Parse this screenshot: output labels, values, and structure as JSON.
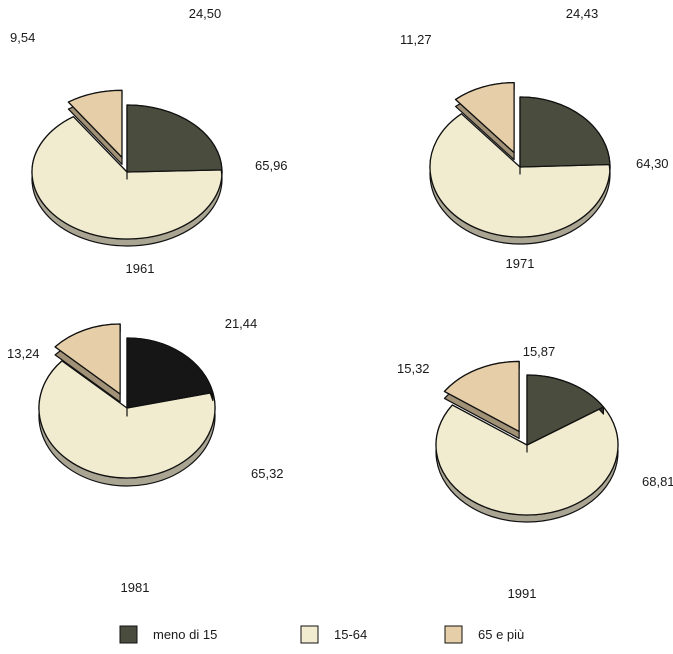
{
  "chart_data": {
    "type": "pie",
    "legend": {
      "placement": "bottom",
      "entries": [
        {
          "label": "meno di 15",
          "color": "#4a4d3e"
        },
        {
          "label": "15-64",
          "color": "#f1ecd0"
        },
        {
          "label": "65 e più",
          "color": "#e6cfa8"
        }
      ]
    },
    "charts": [
      {
        "year": "1961",
        "slices": [
          {
            "category": "meno di 15",
            "value": 24.5,
            "label": "24,50"
          },
          {
            "category": "15-64",
            "value": 65.96,
            "label": "65,96"
          },
          {
            "category": "65 e più",
            "value": 9.54,
            "label": "9,54"
          }
        ]
      },
      {
        "year": "1971",
        "slices": [
          {
            "category": "meno di 15",
            "value": 24.43,
            "label": "24,43"
          },
          {
            "category": "15-64",
            "value": 64.3,
            "label": "64,30"
          },
          {
            "category": "65 e più",
            "value": 11.27,
            "label": "11,27"
          }
        ]
      },
      {
        "year": "1981",
        "slices": [
          {
            "category": "meno di 15",
            "value": 21.44,
            "label": "21,44",
            "color": "#161616"
          },
          {
            "category": "15-64",
            "value": 65.32,
            "label": "65,32"
          },
          {
            "category": "65 e più",
            "value": 13.24,
            "label": "13,24"
          }
        ]
      },
      {
        "year": "1991",
        "slices": [
          {
            "category": "meno di 15",
            "value": 15.87,
            "label": "15,87"
          },
          {
            "category": "15-64",
            "value": 68.81,
            "label": "68,81"
          },
          {
            "category": "65 e più",
            "value": 15.32,
            "label": "15,32"
          }
        ]
      }
    ]
  }
}
